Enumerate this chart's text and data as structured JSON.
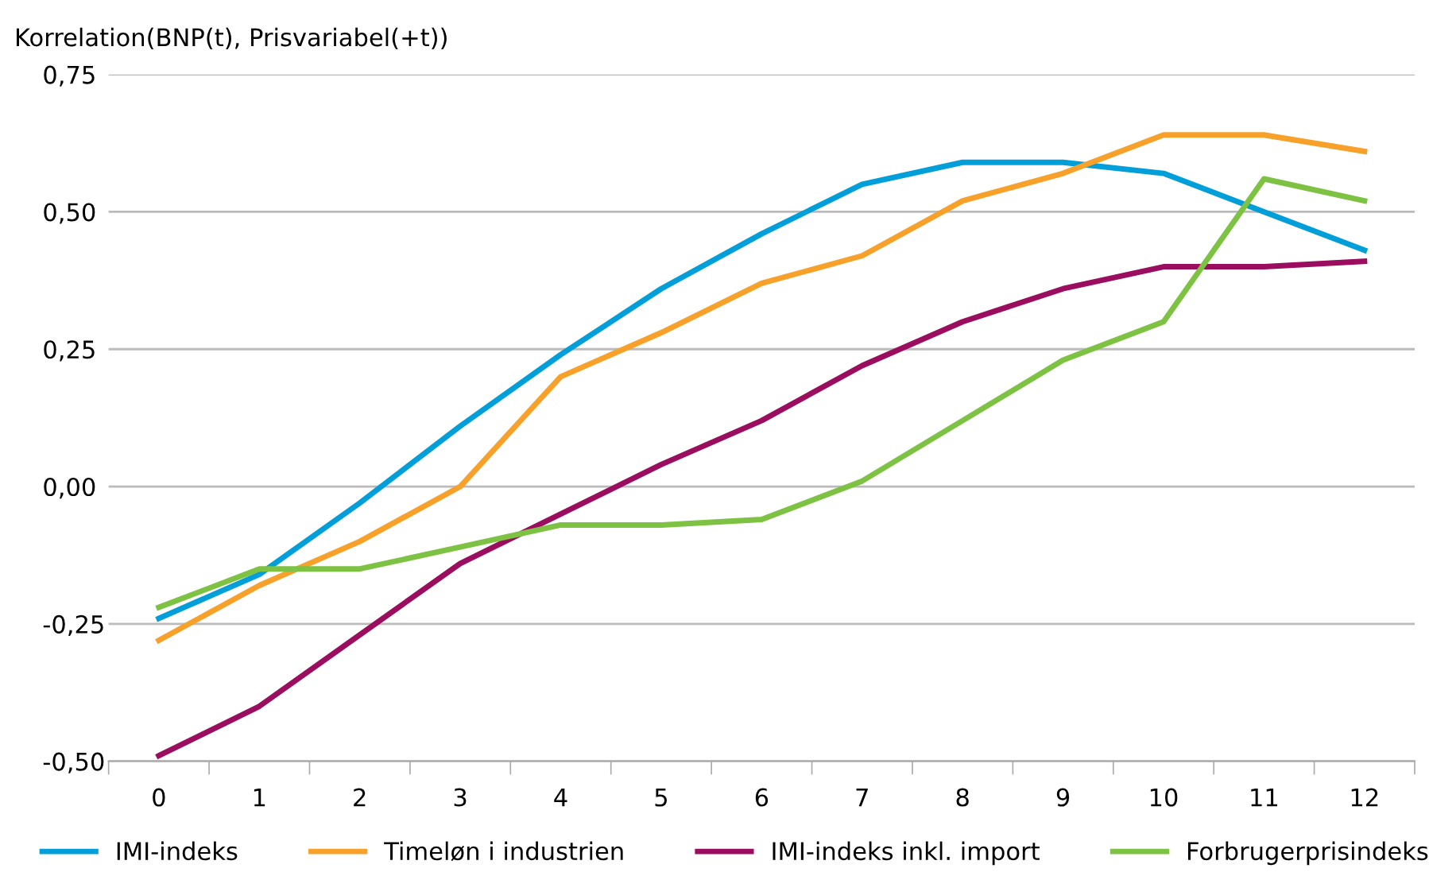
{
  "chart_data": {
    "type": "line",
    "ylabel": "Korrelation(BNP(t), Prisvariabel(+t))",
    "categories": [
      "0",
      "1",
      "2",
      "3",
      "4",
      "5",
      "6",
      "7",
      "8",
      "9",
      "10",
      "11",
      "12"
    ],
    "series": [
      {
        "name": "IMI-indeks",
        "color": "#009fda",
        "values": [
          -0.24,
          -0.16,
          -0.03,
          0.11,
          0.24,
          0.36,
          0.46,
          0.55,
          0.59,
          0.59,
          0.57,
          0.5,
          0.43
        ]
      },
      {
        "name": "Timeløn i industrien",
        "color": "#f7a12a",
        "values": [
          -0.28,
          -0.18,
          -0.1,
          0.0,
          0.2,
          0.28,
          0.37,
          0.42,
          0.52,
          0.57,
          0.64,
          0.64,
          0.61
        ]
      },
      {
        "name": "IMI-indeks inkl. import",
        "color": "#9b0d5e",
        "values": [
          -0.49,
          -0.4,
          -0.27,
          -0.14,
          -0.05,
          0.04,
          0.12,
          0.22,
          0.3,
          0.36,
          0.4,
          0.4,
          0.41
        ]
      },
      {
        "name": "Forbrugerprisindeks",
        "color": "#7dc242",
        "values": [
          -0.22,
          -0.15,
          -0.15,
          -0.11,
          -0.07,
          -0.07,
          -0.06,
          0.01,
          0.12,
          0.23,
          0.3,
          0.56,
          0.52
        ]
      }
    ],
    "ylim": [
      -0.5,
      0.75
    ],
    "yticks": [
      {
        "value": -0.5,
        "label": "-0,50"
      },
      {
        "value": -0.25,
        "label": "-0,25"
      },
      {
        "value": 0,
        "label": "0,00"
      },
      {
        "value": 0.25,
        "label": "0,25"
      },
      {
        "value": 0.5,
        "label": "0,50"
      },
      {
        "value": 0.75,
        "label": "0,75"
      }
    ],
    "grid": "y",
    "legend": "bottom",
    "marker": "none",
    "line_style": "solid"
  }
}
